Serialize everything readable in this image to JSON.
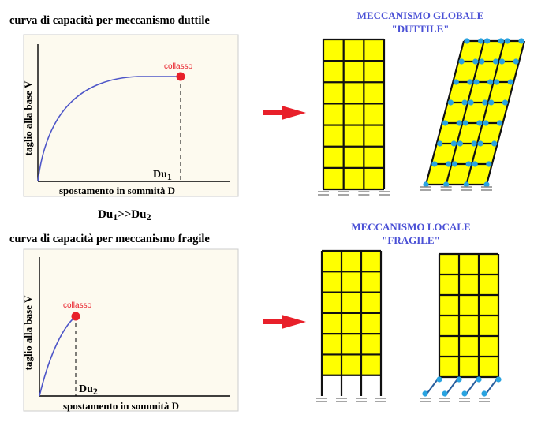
{
  "top": {
    "chart_title": "curva di capacità per meccanismo duttile",
    "y_label": "taglio alla base V",
    "x_label": "spostamento in sommità D",
    "collapse_label": "collasso",
    "du_label": "Du",
    "du_sub": "1",
    "mechanism_title_line1": "MECCANISMO GLOBALE",
    "mechanism_title_line2": "\"DUTTILE\""
  },
  "comparison": {
    "left": "Du",
    "left_sub": "1",
    "op": ">>Du",
    "right_sub": "2"
  },
  "bottom": {
    "chart_title": "curva di capacità per meccanismo fragile",
    "y_label": "taglio alla base V",
    "x_label": "spostamento in sommità D",
    "collapse_label": "collasso",
    "du_label": "Du",
    "du_sub": "2",
    "mechanism_title_line1": "MECCANISMO LOCALE",
    "mechanism_title_line2": "\"FRAGILE\""
  },
  "colors": {
    "chart_bg": "#fdfaef",
    "curve": "#4e56c8",
    "collapse_point": "#e8202a",
    "arrow": "#e8202a",
    "frame_fill": "#ffff00",
    "frame_stroke": "#111111",
    "hinge": "#29a3e0",
    "title_blue": "#4a50d6"
  }
}
